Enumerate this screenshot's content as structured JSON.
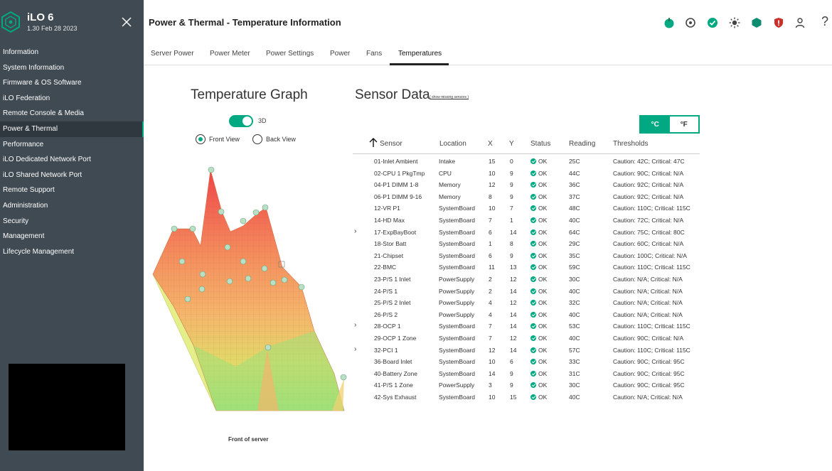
{
  "app": {
    "name": "iLO 6",
    "version": "1.30 Feb 28 2023"
  },
  "nav": {
    "items": [
      {
        "label": "Information"
      },
      {
        "label": "System Information"
      },
      {
        "label": "Firmware & OS Software"
      },
      {
        "label": "iLO Federation"
      },
      {
        "label": "Remote Console & Media"
      },
      {
        "label": "Power & Thermal",
        "active": true
      },
      {
        "label": "Performance"
      },
      {
        "label": "iLO Dedicated Network Port"
      },
      {
        "label": "iLO Shared Network Port"
      },
      {
        "label": "Remote Support"
      },
      {
        "label": "Administration"
      },
      {
        "label": "Security"
      },
      {
        "label": "Management"
      },
      {
        "label": "Lifecycle Management"
      }
    ]
  },
  "header": {
    "title": "Power & Thermal - Temperature Information",
    "icons": [
      "power-icon",
      "uid-indicator-icon",
      "health-ok-icon",
      "brightness-icon",
      "hexagon-icon",
      "security-shield-icon",
      "user-icon",
      "help-icon"
    ],
    "help_label": "?"
  },
  "tabs": [
    {
      "label": "Server Power"
    },
    {
      "label": "Power Meter"
    },
    {
      "label": "Power Settings"
    },
    {
      "label": "Power"
    },
    {
      "label": "Fans"
    },
    {
      "label": "Temperatures",
      "active": true
    }
  ],
  "graph": {
    "title": "Temperature Graph",
    "toggle_label": "3D",
    "toggle_on": true,
    "front_view_label": "Front View",
    "back_view_label": "Back View",
    "selected_view": "front",
    "caption": "Front of server"
  },
  "sensors": {
    "title": "Sensor Data",
    "missing_link": "( show missing sensors )",
    "unit_c": "°C",
    "unit_f": "°F",
    "selected_unit": "C",
    "columns": [
      "Sensor",
      "Location",
      "X",
      "Y",
      "Status",
      "Reading",
      "Thresholds"
    ],
    "rows": [
      {
        "sensor": "01-Inlet Ambient",
        "location": "Intake",
        "x": "15",
        "y": "0",
        "status": "OK",
        "reading": "25C",
        "thresholds": "Caution: 42C; Critical: 47C",
        "expandable": false
      },
      {
        "sensor": "02-CPU 1 PkgTmp",
        "location": "CPU",
        "x": "10",
        "y": "9",
        "status": "OK",
        "reading": "44C",
        "thresholds": "Caution: 90C; Critical: N/A",
        "expandable": false
      },
      {
        "sensor": "04-P1 DIMM 1-8",
        "location": "Memory",
        "x": "12",
        "y": "9",
        "status": "OK",
        "reading": "36C",
        "thresholds": "Caution: 92C; Critical: N/A",
        "expandable": false
      },
      {
        "sensor": "06-P1 DIMM 9-16",
        "location": "Memory",
        "x": "8",
        "y": "9",
        "status": "OK",
        "reading": "37C",
        "thresholds": "Caution: 92C; Critical: N/A",
        "expandable": false
      },
      {
        "sensor": "12-VR P1",
        "location": "SystemBoard",
        "x": "10",
        "y": "7",
        "status": "OK",
        "reading": "48C",
        "thresholds": "Caution: 110C; Critical: 115C",
        "expandable": false
      },
      {
        "sensor": "14-HD Max",
        "location": "SystemBoard",
        "x": "7",
        "y": "1",
        "status": "OK",
        "reading": "40C",
        "thresholds": "Caution: 72C; Critical: N/A",
        "expandable": false
      },
      {
        "sensor": "17-ExpBayBoot",
        "location": "SystemBoard",
        "x": "6",
        "y": "14",
        "status": "OK",
        "reading": "64C",
        "thresholds": "Caution: 75C; Critical: 80C",
        "expandable": true
      },
      {
        "sensor": "18-Stor Batt",
        "location": "SystemBoard",
        "x": "1",
        "y": "8",
        "status": "OK",
        "reading": "29C",
        "thresholds": "Caution: 60C; Critical: N/A",
        "expandable": false
      },
      {
        "sensor": "21-Chipset",
        "location": "SystemBoard",
        "x": "6",
        "y": "9",
        "status": "OK",
        "reading": "35C",
        "thresholds": "Caution: 100C; Critical: N/A",
        "expandable": false
      },
      {
        "sensor": "22-BMC",
        "location": "SystemBoard",
        "x": "11",
        "y": "13",
        "status": "OK",
        "reading": "59C",
        "thresholds": "Caution: 110C; Critical: 115C",
        "expandable": false
      },
      {
        "sensor": "23-P/S 1 Inlet",
        "location": "PowerSupply",
        "x": "2",
        "y": "12",
        "status": "OK",
        "reading": "30C",
        "thresholds": "Caution: N/A; Critical: N/A",
        "expandable": false
      },
      {
        "sensor": "24-P/S 1",
        "location": "PowerSupply",
        "x": "2",
        "y": "14",
        "status": "OK",
        "reading": "40C",
        "thresholds": "Caution: N/A; Critical: N/A",
        "expandable": false
      },
      {
        "sensor": "25-P/S 2 Inlet",
        "location": "PowerSupply",
        "x": "4",
        "y": "12",
        "status": "OK",
        "reading": "32C",
        "thresholds": "Caution: N/A; Critical: N/A",
        "expandable": false
      },
      {
        "sensor": "26-P/S 2",
        "location": "PowerSupply",
        "x": "4",
        "y": "14",
        "status": "OK",
        "reading": "40C",
        "thresholds": "Caution: N/A; Critical: N/A",
        "expandable": false
      },
      {
        "sensor": "28-OCP 1",
        "location": "SystemBoard",
        "x": "7",
        "y": "14",
        "status": "OK",
        "reading": "53C",
        "thresholds": "Caution: 110C; Critical: 115C",
        "expandable": true
      },
      {
        "sensor": "29-OCP 1 Zone",
        "location": "SystemBoard",
        "x": "7",
        "y": "12",
        "status": "OK",
        "reading": "40C",
        "thresholds": "Caution: 90C; Critical: N/A",
        "expandable": false
      },
      {
        "sensor": "32-PCI 1",
        "location": "SystemBoard",
        "x": "12",
        "y": "14",
        "status": "OK",
        "reading": "57C",
        "thresholds": "Caution: 110C; Critical: 115C",
        "expandable": true
      },
      {
        "sensor": "36-Board Inlet",
        "location": "SystemBoard",
        "x": "10",
        "y": "6",
        "status": "OK",
        "reading": "33C",
        "thresholds": "Caution: 90C; Critical: 95C",
        "expandable": false
      },
      {
        "sensor": "40-Battery Zone",
        "location": "SystemBoard",
        "x": "14",
        "y": "9",
        "status": "OK",
        "reading": "31C",
        "thresholds": "Caution: 90C; Critical: 95C",
        "expandable": false
      },
      {
        "sensor": "41-P/S 1 Zone",
        "location": "PowerSupply",
        "x": "3",
        "y": "9",
        "status": "OK",
        "reading": "30C",
        "thresholds": "Caution: 90C; Critical: 95C",
        "expandable": false
      },
      {
        "sensor": "42-Sys Exhaust",
        "location": "SystemBoard",
        "x": "10",
        "y": "15",
        "status": "OK",
        "reading": "40C",
        "thresholds": "Caution: N/A; Critical: N/A",
        "expandable": false
      }
    ]
  },
  "colors": {
    "accent": "#01a982",
    "sidebar": "#3f4a52",
    "alert_red": "#c8312b"
  }
}
